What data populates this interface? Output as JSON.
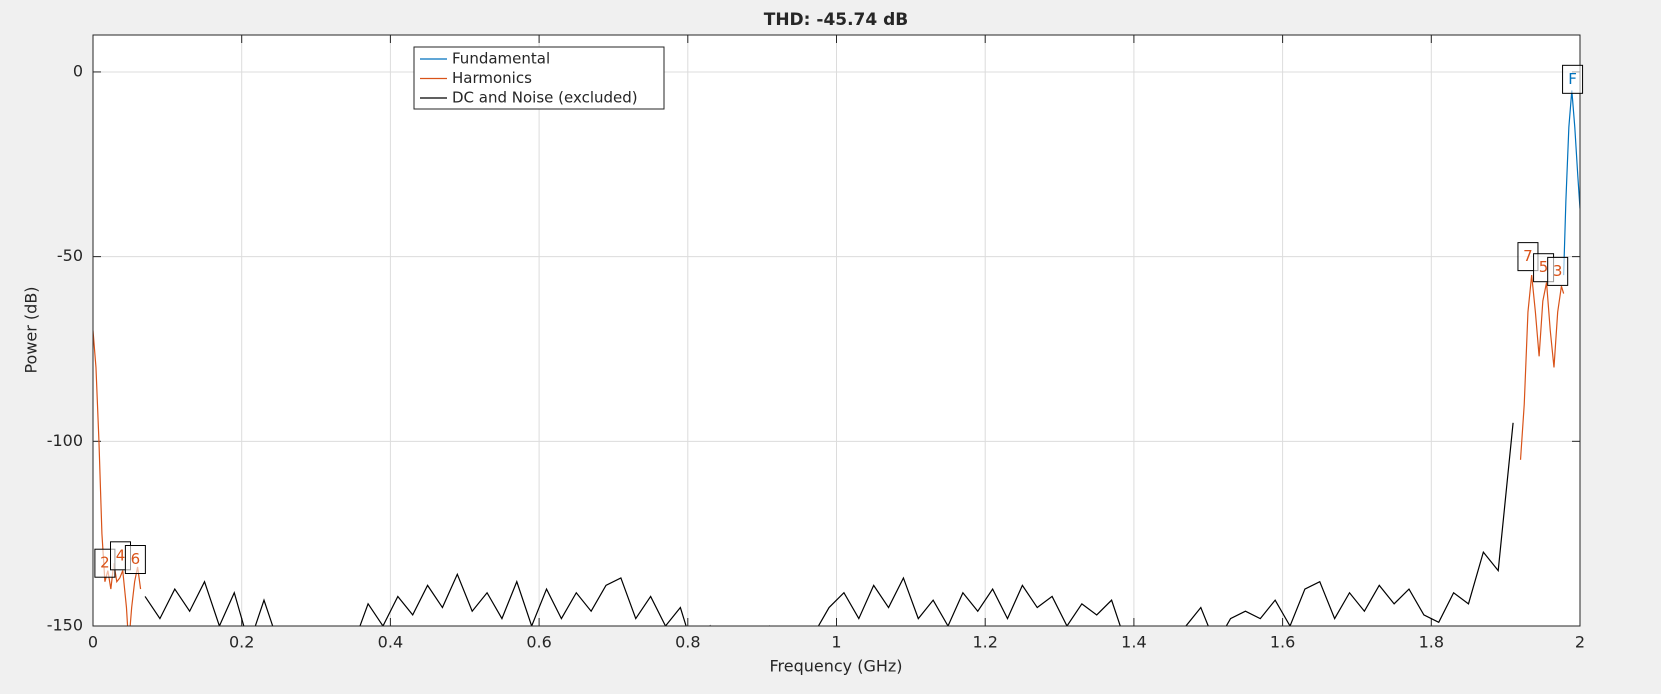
{
  "chart_data": {
    "type": "line",
    "title": "THD: -45.74 dB",
    "x_label": "Frequency (GHz)",
    "y_label": "Power (dB)",
    "xlim": [
      0,
      2
    ],
    "xticks": [
      0,
      0.2,
      0.4,
      0.6,
      0.8,
      1,
      1.2,
      1.4,
      1.6,
      1.8,
      2
    ],
    "ylim": [
      -150,
      10
    ],
    "yticks": [
      -150,
      -100,
      -50,
      0
    ],
    "grid": true,
    "series": [
      {
        "name": "Fundamental",
        "color": "#0072bd",
        "x": [
          1.978,
          1.981,
          1.985,
          1.989,
          1.993,
          1.997,
          2.0
        ],
        "values": [
          -55,
          -35,
          -15,
          -5,
          -15,
          -28,
          -37
        ]
      },
      {
        "name": "Harmonics",
        "color": "#d95319",
        "x": [
          0,
          0.004,
          0.008,
          0.012,
          0.016,
          0.02,
          0.024,
          0.028,
          0.032,
          0.036,
          0.04,
          0.045,
          0.048,
          0.052,
          0.056,
          0.06,
          0.064,
          0.5,
          1.92,
          1.925,
          1.93,
          1.935,
          1.94,
          1.945,
          1.95,
          1.955,
          1.96,
          1.965,
          1.97,
          1.975,
          1.978
        ],
        "values": [
          -70,
          -80,
          -100,
          -125,
          -138,
          -135,
          -140,
          -133,
          -138,
          -137,
          -135,
          -145,
          -155,
          -145,
          -138,
          -134,
          -140,
          null,
          -105,
          -90,
          -65,
          -55,
          -65,
          -77,
          -62,
          -57,
          -70,
          -80,
          -65,
          -58,
          -60
        ]
      },
      {
        "name": "DC and Noise (excluded)",
        "color": "#000000",
        "x": [
          0.07,
          0.09,
          0.11,
          0.13,
          0.15,
          0.17,
          0.19,
          0.21,
          0.23,
          0.25,
          0.27,
          0.29,
          0.31,
          0.33,
          0.35,
          0.37,
          0.39,
          0.41,
          0.43,
          0.45,
          0.47,
          0.49,
          0.51,
          0.53,
          0.55,
          0.57,
          0.59,
          0.61,
          0.63,
          0.65,
          0.67,
          0.69,
          0.71,
          0.73,
          0.75,
          0.77,
          0.79,
          0.81,
          0.83,
          0.85,
          0.87,
          0.89,
          0.91,
          0.93,
          0.95,
          0.97,
          0.99,
          1.01,
          1.03,
          1.05,
          1.07,
          1.09,
          1.11,
          1.13,
          1.15,
          1.17,
          1.19,
          1.21,
          1.23,
          1.25,
          1.27,
          1.29,
          1.31,
          1.33,
          1.35,
          1.37,
          1.39,
          1.41,
          1.43,
          1.45,
          1.47,
          1.49,
          1.51,
          1.53,
          1.55,
          1.57,
          1.59,
          1.61,
          1.63,
          1.65,
          1.67,
          1.69,
          1.71,
          1.73,
          1.75,
          1.77,
          1.79,
          1.81,
          1.83,
          1.85,
          1.87,
          1.89,
          1.91
        ],
        "values": [
          -142,
          -148,
          -140,
          -146,
          -138,
          -150,
          -141,
          -155,
          -143,
          -155,
          -158,
          -158,
          -158,
          -158,
          -155,
          -144,
          -150,
          -142,
          -147,
          -139,
          -145,
          -136,
          -146,
          -141,
          -148,
          -138,
          -150,
          -140,
          -148,
          -141,
          -146,
          -139,
          -137,
          -148,
          -142,
          -150,
          -145,
          -158,
          -150,
          -158,
          -158,
          -152,
          -150,
          -155,
          -158,
          -152,
          -145,
          -141,
          -148,
          -139,
          -145,
          -137,
          -148,
          -143,
          -150,
          -141,
          -146,
          -140,
          -148,
          -139,
          -145,
          -142,
          -150,
          -144,
          -147,
          -143,
          -155,
          -152,
          -158,
          -158,
          -150,
          -145,
          -155,
          -148,
          -146,
          -148,
          -143,
          -150,
          -140,
          -138,
          -148,
          -141,
          -146,
          -139,
          -144,
          -140,
          -147,
          -149,
          -141,
          -144,
          -130,
          -135,
          -95
        ]
      }
    ],
    "annotations": [
      {
        "text": "F",
        "x": 1.99,
        "y": -2,
        "color": "#0072bd"
      },
      {
        "text": "7",
        "x": 1.93,
        "y": -50,
        "color": "#d95319"
      },
      {
        "text": "5",
        "x": 1.951,
        "y": -53,
        "color": "#d95319"
      },
      {
        "text": "3",
        "x": 1.97,
        "y": -54,
        "color": "#d95319"
      },
      {
        "text": "2",
        "x": 0.016,
        "y": -133,
        "color": "#d95319"
      },
      {
        "text": "4",
        "x": 0.037,
        "y": -131,
        "color": "#d95319"
      },
      {
        "text": "6",
        "x": 0.057,
        "y": -132,
        "color": "#d95319"
      }
    ]
  }
}
